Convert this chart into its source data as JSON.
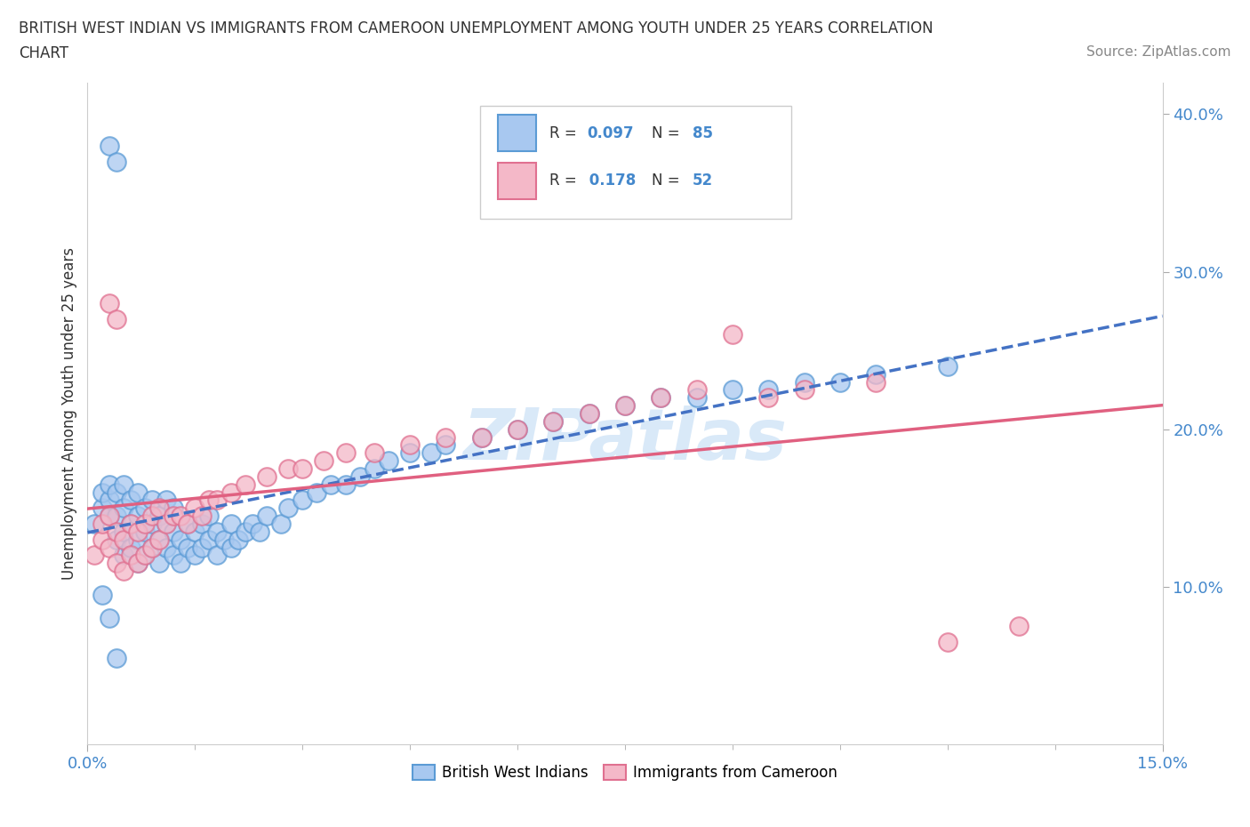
{
  "title_line1": "BRITISH WEST INDIAN VS IMMIGRANTS FROM CAMEROON UNEMPLOYMENT AMONG YOUTH UNDER 25 YEARS CORRELATION",
  "title_line2": "CHART",
  "source_text": "Source: ZipAtlas.com",
  "ylabel": "Unemployment Among Youth under 25 years",
  "xlim": [
    0.0,
    0.15
  ],
  "ylim": [
    0.0,
    0.42
  ],
  "yticks_right": [
    0.1,
    0.2,
    0.3,
    0.4
  ],
  "ytick_right_labels": [
    "10.0%",
    "20.0%",
    "30.0%",
    "40.0%"
  ],
  "xtick_vals": [
    0.0,
    0.15
  ],
  "xtick_labels": [
    "0.0%",
    "15.0%"
  ],
  "blue_face": "#a8c8f0",
  "blue_edge": "#5b9bd5",
  "pink_face": "#f4b8c8",
  "pink_edge": "#e07090",
  "blue_line_color": "#4472c4",
  "pink_line_color": "#e06080",
  "watermark": "ZIPatlas",
  "legend_label1": "British West Indians",
  "legend_label2": "Immigrants from Cameroon",
  "blue_x": [
    0.001,
    0.002,
    0.002,
    0.003,
    0.003,
    0.003,
    0.004,
    0.004,
    0.004,
    0.005,
    0.005,
    0.005,
    0.005,
    0.006,
    0.006,
    0.006,
    0.007,
    0.007,
    0.007,
    0.007,
    0.008,
    0.008,
    0.008,
    0.009,
    0.009,
    0.009,
    0.01,
    0.01,
    0.01,
    0.011,
    0.011,
    0.011,
    0.012,
    0.012,
    0.012,
    0.013,
    0.013,
    0.014,
    0.014,
    0.015,
    0.015,
    0.016,
    0.016,
    0.017,
    0.017,
    0.018,
    0.018,
    0.019,
    0.02,
    0.02,
    0.021,
    0.022,
    0.023,
    0.024,
    0.025,
    0.027,
    0.028,
    0.03,
    0.032,
    0.034,
    0.036,
    0.038,
    0.04,
    0.042,
    0.045,
    0.048,
    0.05,
    0.055,
    0.06,
    0.065,
    0.07,
    0.075,
    0.08,
    0.085,
    0.09,
    0.095,
    0.1,
    0.105,
    0.11,
    0.12,
    0.003,
    0.004,
    0.002,
    0.003,
    0.004
  ],
  "blue_y": [
    0.14,
    0.15,
    0.16,
    0.145,
    0.155,
    0.165,
    0.13,
    0.145,
    0.16,
    0.12,
    0.135,
    0.15,
    0.165,
    0.125,
    0.14,
    0.155,
    0.115,
    0.13,
    0.145,
    0.16,
    0.12,
    0.135,
    0.15,
    0.125,
    0.14,
    0.155,
    0.115,
    0.13,
    0.145,
    0.125,
    0.14,
    0.155,
    0.12,
    0.135,
    0.15,
    0.115,
    0.13,
    0.125,
    0.14,
    0.12,
    0.135,
    0.125,
    0.14,
    0.13,
    0.145,
    0.12,
    0.135,
    0.13,
    0.125,
    0.14,
    0.13,
    0.135,
    0.14,
    0.135,
    0.145,
    0.14,
    0.15,
    0.155,
    0.16,
    0.165,
    0.165,
    0.17,
    0.175,
    0.18,
    0.185,
    0.185,
    0.19,
    0.195,
    0.2,
    0.205,
    0.21,
    0.215,
    0.22,
    0.22,
    0.225,
    0.225,
    0.23,
    0.23,
    0.235,
    0.24,
    0.38,
    0.37,
    0.095,
    0.08,
    0.055
  ],
  "pink_x": [
    0.001,
    0.002,
    0.002,
    0.003,
    0.003,
    0.004,
    0.004,
    0.005,
    0.005,
    0.006,
    0.006,
    0.007,
    0.007,
    0.008,
    0.008,
    0.009,
    0.009,
    0.01,
    0.01,
    0.011,
    0.012,
    0.013,
    0.014,
    0.015,
    0.016,
    0.017,
    0.018,
    0.02,
    0.022,
    0.025,
    0.028,
    0.03,
    0.033,
    0.036,
    0.04,
    0.045,
    0.05,
    0.055,
    0.06,
    0.065,
    0.07,
    0.075,
    0.08,
    0.085,
    0.09,
    0.095,
    0.1,
    0.11,
    0.12,
    0.13,
    0.003,
    0.004
  ],
  "pink_y": [
    0.12,
    0.13,
    0.14,
    0.125,
    0.145,
    0.115,
    0.135,
    0.11,
    0.13,
    0.12,
    0.14,
    0.115,
    0.135,
    0.12,
    0.14,
    0.125,
    0.145,
    0.13,
    0.15,
    0.14,
    0.145,
    0.145,
    0.14,
    0.15,
    0.145,
    0.155,
    0.155,
    0.16,
    0.165,
    0.17,
    0.175,
    0.175,
    0.18,
    0.185,
    0.185,
    0.19,
    0.195,
    0.195,
    0.2,
    0.205,
    0.21,
    0.215,
    0.22,
    0.225,
    0.26,
    0.22,
    0.225,
    0.23,
    0.065,
    0.075,
    0.28,
    0.27
  ]
}
